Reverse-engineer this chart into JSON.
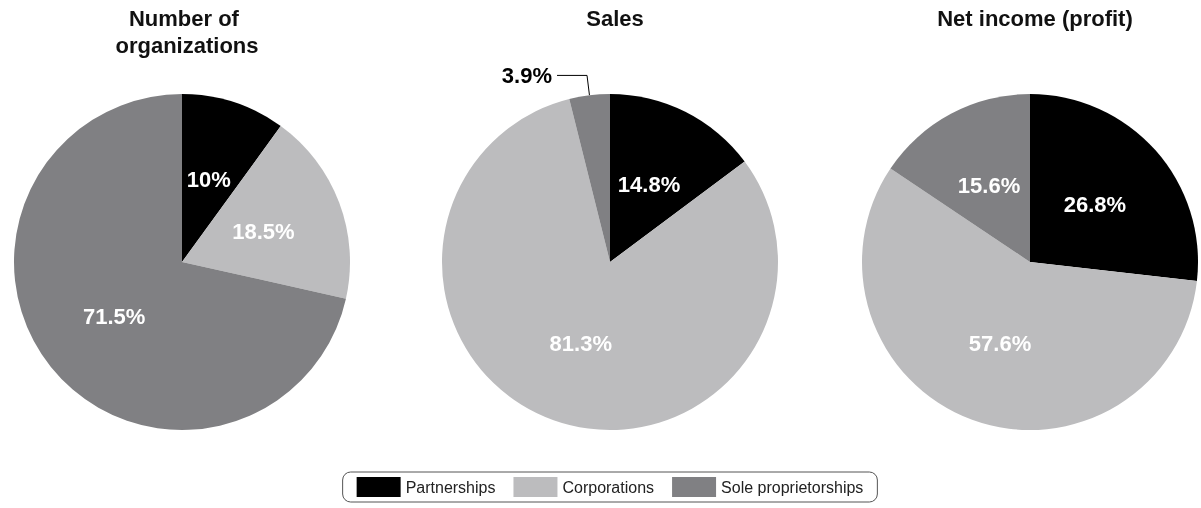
{
  "chart_data": [
    {
      "type": "pie",
      "title": "Number of organizations",
      "categories": [
        null,
        null,
        null
      ],
      "values": [
        10,
        18.5,
        71.5
      ],
      "colors": [
        "#000000",
        "#bcbcbe",
        "#808083"
      ],
      "value_labels": [
        "10%",
        "18.5%",
        "71.5%"
      ]
    },
    {
      "type": "pie",
      "title": "Sales",
      "categories": [
        "Partnerships",
        "Corporations",
        "Sole proprietorships"
      ],
      "values": [
        14.8,
        81.3,
        3.9
      ],
      "colors": [
        "#000000",
        "#bcbcbe",
        "#808083"
      ],
      "value_labels": [
        "14.8%",
        "81.3%",
        "3.9%"
      ],
      "legend": "bottom"
    },
    {
      "type": "pie",
      "title": "Net income (profit)",
      "categories": [
        null,
        null,
        null
      ],
      "values": [
        26.8,
        57.6,
        15.6
      ],
      "colors": [
        "#000000",
        "#bcbcbe",
        "#808083"
      ],
      "value_labels": [
        "26.8%",
        "57.6%",
        "15.6%"
      ]
    }
  ]
}
